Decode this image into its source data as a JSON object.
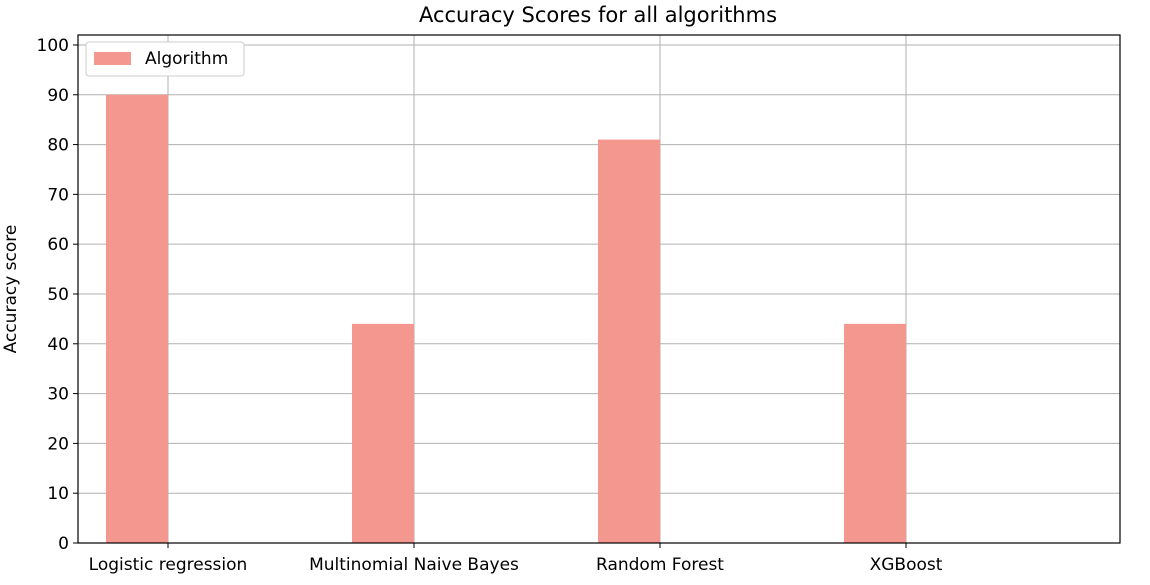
{
  "chart_data": {
    "type": "bar",
    "title": "Accuracy Scores for all algorithms",
    "xlabel": "",
    "ylabel": "Accuracy score",
    "categories": [
      "Logistic regression",
      "Multinomial Naive Bayes",
      "Random Forest",
      "XGBoost"
    ],
    "series": [
      {
        "name": "Algorithm",
        "values": [
          90,
          44,
          81,
          44
        ],
        "color": "#f4978e"
      }
    ],
    "ylim": [
      0,
      102
    ],
    "yticks": [
      0,
      10,
      20,
      30,
      40,
      50,
      60,
      70,
      80,
      90,
      100
    ],
    "grid": true,
    "legend": "top-left"
  }
}
